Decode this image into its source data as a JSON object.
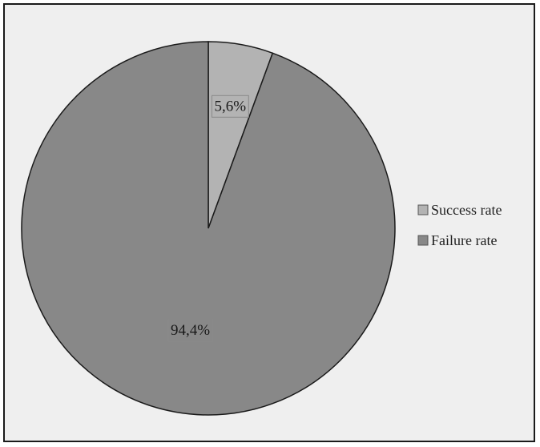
{
  "chart_data": {
    "type": "pie",
    "title": "",
    "slices": [
      {
        "label": "Success rate",
        "value": 5.6,
        "display": "5,6%",
        "color": "#b3b3b3"
      },
      {
        "label": "Failure rate",
        "value": 94.4,
        "display": "94,4%",
        "color": "#888888"
      }
    ],
    "start_angle_deg": 0,
    "direction": "clockwise",
    "legend": {
      "position": "right",
      "entries": [
        "Success rate",
        "Failure rate"
      ]
    }
  }
}
